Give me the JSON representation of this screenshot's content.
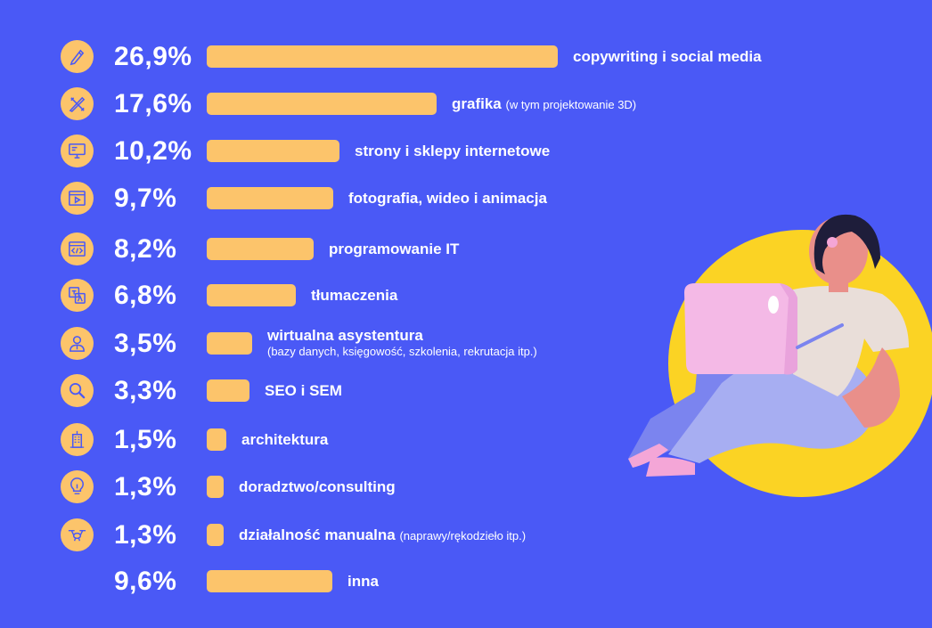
{
  "colors": {
    "background": "#4a59f6",
    "bar": "#fcc46b",
    "text": "#ffffff",
    "icon_stroke": "#4a59f6"
  },
  "chart_data": {
    "type": "bar",
    "orientation": "horizontal",
    "title": "",
    "xlabel": "",
    "ylabel": "",
    "categories": [
      "copywriting i social media",
      "grafika",
      "strony i sklepy internetowe",
      "fotografia, wideo i animacja",
      "programowanie IT",
      "tłumaczenia",
      "wirtualna asystentura",
      "SEO i SEM",
      "architektura",
      "doradztwo/consulting",
      "działalność manualna",
      "inna"
    ],
    "notes": [
      "",
      "(w tym projektowanie 3D)",
      "",
      "",
      "",
      "",
      "(bazy danych, księgowość, szkolenia, rekrutacja itp.)",
      "",
      "",
      "",
      "(naprawy/rękodzieło itp.)",
      ""
    ],
    "values": [
      26.9,
      17.6,
      10.2,
      9.7,
      8.2,
      6.8,
      3.5,
      3.3,
      1.5,
      1.3,
      1.3,
      9.6
    ],
    "value_labels": [
      "26,9%",
      "17,6%",
      "10,2%",
      "9,7%",
      "8,2%",
      "6,8%",
      "3,5%",
      "3,3%",
      "1,5%",
      "1,3%",
      "1,3%",
      "9,6%"
    ],
    "icons": [
      "pen-icon",
      "pencil-ruler-icon",
      "monitor-icon",
      "video-player-icon",
      "code-window-icon",
      "translate-icon",
      "assistant-person-icon",
      "magnifier-icon",
      "building-icon",
      "lightbulb-icon",
      "drone-icon",
      ""
    ],
    "xlim": [
      0,
      26.9
    ],
    "grid": false,
    "legend": "none"
  }
}
